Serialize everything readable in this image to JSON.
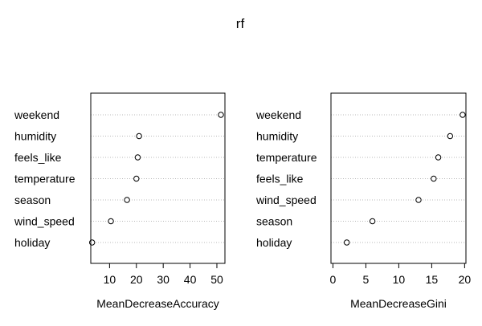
{
  "title": "rf",
  "chart_data": [
    {
      "type": "scatter",
      "xlabel": "MeanDecreaseAccuracy",
      "xlim": [
        3,
        53
      ],
      "xticks": [
        10,
        20,
        30,
        40,
        50
      ],
      "grid": "dotted horizontal",
      "categories": [
        "weekend",
        "humidity",
        "feels_like",
        "temperature",
        "season",
        "wind_speed",
        "holiday"
      ],
      "values": [
        51.5,
        21.0,
        20.5,
        20.0,
        16.5,
        10.5,
        3.5
      ]
    },
    {
      "type": "scatter",
      "xlabel": "MeanDecreaseGini",
      "xlim": [
        -0.3,
        20.2
      ],
      "xticks": [
        0,
        5,
        10,
        15,
        20
      ],
      "grid": "dotted horizontal",
      "categories": [
        "weekend",
        "humidity",
        "temperature",
        "feels_like",
        "wind_speed",
        "season",
        "holiday"
      ],
      "values": [
        19.7,
        17.8,
        16.0,
        15.3,
        13.0,
        6.0,
        2.1
      ]
    }
  ]
}
